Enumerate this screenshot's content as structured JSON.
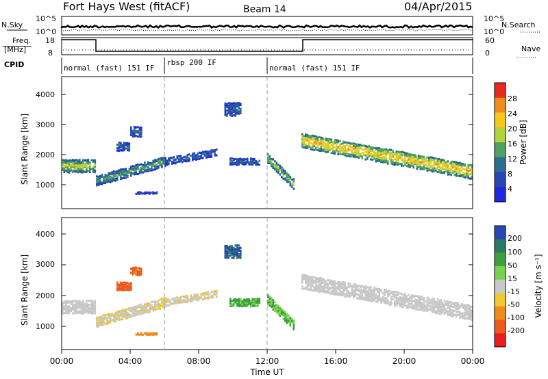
{
  "header": {
    "station": "Fort Hays West (fitACF)",
    "beam": "Beam 14",
    "date": "04/Apr/2015"
  },
  "strip": {
    "left_top_label": "N.Sky",
    "left_top_ticks": [
      "10^5",
      "10^0"
    ],
    "right_top_label": "N.Search",
    "right_top_ticks": [
      "10^5",
      "10^0"
    ],
    "freq_label_1": "Freq.",
    "freq_label_2": "[MHz]",
    "freq_ticks": [
      "18",
      "8"
    ],
    "nave_label": "Nave",
    "nave_ticks": [
      "60",
      "0"
    ],
    "cpid_label": "CPID",
    "modes": [
      {
        "label": "normal (fast) 151 IF",
        "start": 0,
        "end": 6
      },
      {
        "label": "rbsp 200 IF",
        "start": 6,
        "end": 12
      },
      {
        "label": "normal (fast) 151 IF",
        "start": 12,
        "end": 24
      }
    ]
  },
  "x_axis": {
    "label": "Time UT",
    "tick_labels": [
      "00:00",
      "04:00",
      "08:00",
      "12:00",
      "16:00",
      "20:00",
      "00:00"
    ]
  },
  "panels": {
    "power": {
      "ylabel": "Slant Range [km]",
      "yticks": [
        "4000",
        "3000",
        "2000",
        "1000"
      ],
      "cbar_label": "Power [dB]",
      "cbar_ticks": [
        "28",
        "24",
        "20",
        "16",
        "12",
        "8",
        "4"
      ],
      "cbar_colors": [
        "#e8281e",
        "#f08c1e",
        "#f5c81e",
        "#b4d23c",
        "#50a064",
        "#2d6e8c",
        "#2846b4",
        "#1e28dc"
      ]
    },
    "velocity": {
      "ylabel": "Slant Range [km]",
      "yticks": [
        "4000",
        "3000",
        "2000",
        "1000"
      ],
      "cbar_label": "Velocity [m s⁻¹]",
      "cbar_ticks": [
        "200",
        "100",
        "50",
        "15",
        "-15",
        "-50",
        "-100",
        "-200"
      ],
      "cbar_colors": [
        "#2846b4",
        "#2d7864",
        "#3ca03c",
        "#78d250",
        "#c8c8c8",
        "#f0c832",
        "#f08c1e",
        "#e85a1e",
        "#e81e1e"
      ]
    }
  },
  "chart_data": [
    {
      "type": "heatmap",
      "title": "Power",
      "x": "UT hours",
      "xlim": [
        0,
        24
      ],
      "ylabel": "Slant Range [km]",
      "ylim": [
        180,
        4600
      ],
      "colorbar": {
        "label": "Power [dB]",
        "range": [
          0,
          32
        ]
      },
      "echo_regions": [
        {
          "t0": 0.0,
          "t1": 2.0,
          "r_center": 1650,
          "r_width": 450,
          "power": 16
        },
        {
          "t0": 2.0,
          "t1": 6.0,
          "r_center_start": 1150,
          "r_center_end": 1800,
          "r_width": 350,
          "power": 12
        },
        {
          "t0": 6.0,
          "t1": 9.0,
          "r_center_start": 1800,
          "r_center_end": 2100,
          "r_width": 250,
          "power": 8
        },
        {
          "t0": 9.8,
          "t1": 11.5,
          "r_center": 1800,
          "r_width": 250,
          "power": 8
        },
        {
          "t0": 12.0,
          "t1": 13.5,
          "r_center_start": 1900,
          "r_center_end": 1050,
          "r_width": 350,
          "power": 14
        },
        {
          "t0": 14.0,
          "t1": 24.0,
          "r_center_start": 2500,
          "r_center_end": 1450,
          "r_width": 500,
          "power": 20
        },
        {
          "t0": 3.2,
          "t1": 4.0,
          "r_center": 2300,
          "r_width": 300,
          "power": 8
        },
        {
          "t0": 4.0,
          "t1": 4.6,
          "r_center": 2800,
          "r_width": 350,
          "power": 8
        },
        {
          "t0": 4.3,
          "t1": 5.5,
          "r_center": 750,
          "r_width": 80,
          "power": 6
        },
        {
          "t0": 9.5,
          "t1": 10.4,
          "r_center": 3550,
          "r_width": 450,
          "power": 8
        }
      ]
    },
    {
      "type": "heatmap",
      "title": "Velocity",
      "x": "UT hours",
      "xlim": [
        0,
        24
      ],
      "ylabel": "Slant Range [km]",
      "ylim": [
        180,
        4600
      ],
      "colorbar": {
        "label": "Velocity [m s⁻¹]",
        "range": [
          -250,
          250
        ]
      },
      "echo_regions": [
        {
          "t0": 0.0,
          "t1": 2.0,
          "r_center": 1650,
          "r_width": 450,
          "velocity": 0
        },
        {
          "t0": 2.0,
          "t1": 6.0,
          "r_center_start": 1150,
          "r_center_end": 1800,
          "r_width": 350,
          "velocity": -10
        },
        {
          "t0": 3.2,
          "t1": 4.1,
          "r_center": 2350,
          "r_width": 300,
          "velocity": -90
        },
        {
          "t0": 4.0,
          "t1": 4.6,
          "r_center": 2850,
          "r_width": 300,
          "velocity": -80
        },
        {
          "t0": 4.3,
          "t1": 5.5,
          "r_center": 750,
          "r_width": 80,
          "velocity": -60
        },
        {
          "t0": 6.0,
          "t1": 9.0,
          "r_center_start": 1800,
          "r_center_end": 2100,
          "r_width": 250,
          "velocity": -10
        },
        {
          "t0": 9.8,
          "t1": 11.5,
          "r_center": 1800,
          "r_width": 280,
          "velocity": 40
        },
        {
          "t0": 12.0,
          "t1": 13.5,
          "r_center_start": 1900,
          "r_center_end": 1050,
          "r_width": 350,
          "velocity": 30
        },
        {
          "t0": 14.0,
          "t1": 24.0,
          "r_center_start": 2500,
          "r_center_end": 1450,
          "r_width": 500,
          "velocity": 0
        },
        {
          "t0": 9.5,
          "t1": 10.4,
          "r_center": 3500,
          "r_width": 450,
          "velocity": 150
        }
      ]
    }
  ]
}
